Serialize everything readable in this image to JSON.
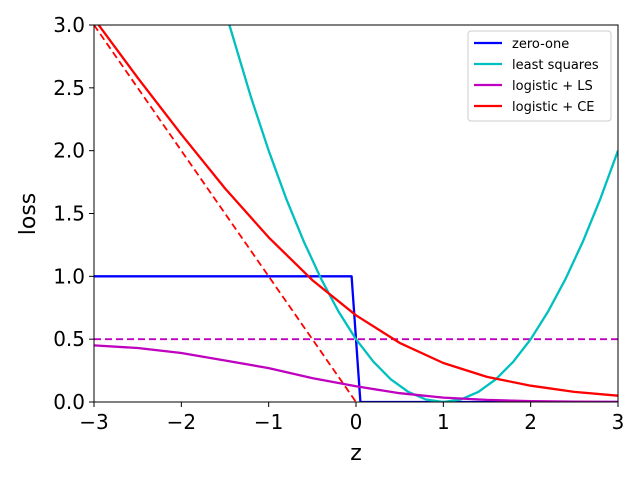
{
  "chart_data": {
    "type": "line",
    "xlabel": "z",
    "ylabel": "loss",
    "xlim": [
      -3,
      3
    ],
    "ylim": [
      0,
      3
    ],
    "x_ticks": [
      -3,
      -2,
      -1,
      0,
      1,
      2,
      3
    ],
    "x_tick_labels": [
      "−3",
      "−2",
      "−1",
      "0",
      "1",
      "2",
      "3"
    ],
    "y_ticks": [
      0,
      0.5,
      1,
      1.5,
      2,
      2.5,
      3
    ],
    "y_tick_labels": [
      "0.0",
      "0.5",
      "1.0",
      "1.5",
      "2.0",
      "2.5",
      "3.0"
    ],
    "grid": false,
    "legend_position": "top-right",
    "series": [
      {
        "name": "zero-one",
        "color": "#0000ff",
        "x": [
          -3,
          -0.05,
          0.05,
          3
        ],
        "y": [
          1,
          1,
          0,
          0
        ]
      },
      {
        "name": "least squares",
        "color": "#00bfbf",
        "x": [
          -1.45,
          -1.2,
          -1.0,
          -0.8,
          -0.6,
          -0.4,
          -0.2,
          0,
          0.2,
          0.4,
          0.6,
          0.8,
          1.0,
          1.2,
          1.4,
          1.6,
          1.8,
          2.0,
          2.2,
          2.4,
          2.6,
          2.8,
          3.0
        ],
        "y": [
          3.0,
          2.42,
          2.0,
          1.62,
          1.28,
          0.98,
          0.72,
          0.5,
          0.32,
          0.18,
          0.08,
          0.02,
          0.0,
          0.02,
          0.08,
          0.18,
          0.32,
          0.5,
          0.72,
          0.98,
          1.28,
          1.62,
          2.0
        ]
      },
      {
        "name": "logistic + LS",
        "color": "#bf00bf",
        "x": [
          -3,
          -2.5,
          -2,
          -1.5,
          -1,
          -0.5,
          0,
          0.5,
          1,
          1.5,
          2,
          2.5,
          3
        ],
        "y": [
          0.45,
          0.43,
          0.39,
          0.33,
          0.27,
          0.19,
          0.125,
          0.07,
          0.035,
          0.017,
          0.007,
          0.003,
          0.001
        ]
      },
      {
        "name": "logistic + CE",
        "color": "#ff0000",
        "x": [
          -3,
          -2.5,
          -2,
          -1.5,
          -1,
          -0.5,
          0,
          0.5,
          1,
          1.5,
          2,
          2.5,
          3
        ],
        "y": [
          3.05,
          2.58,
          2.13,
          1.7,
          1.31,
          0.97,
          0.69,
          0.47,
          0.31,
          0.2,
          0.13,
          0.08,
          0.05
        ]
      }
    ],
    "reference_lines": [
      {
        "color": "#bf00bf",
        "style": "dashed",
        "x": [
          -3,
          3
        ],
        "y": [
          0.5,
          0.5
        ]
      },
      {
        "color": "#ff0000",
        "style": "dashed",
        "x": [
          -3,
          0
        ],
        "y": [
          3,
          0
        ]
      }
    ]
  }
}
